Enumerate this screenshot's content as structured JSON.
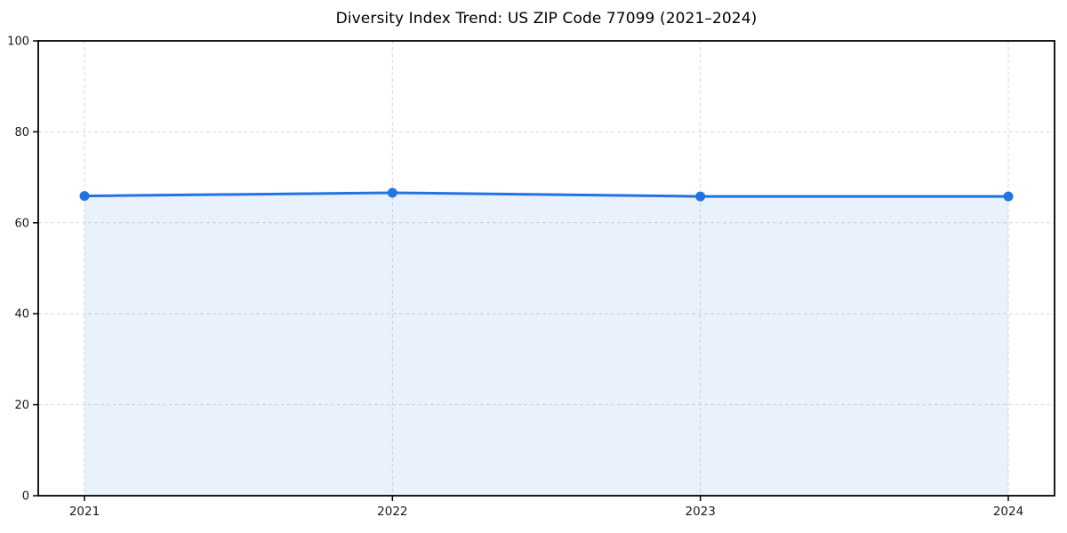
{
  "chart_data": {
    "type": "line",
    "title": "Diversity Index Trend: US ZIP Code 77099 (2021–2024)",
    "series_name": "Diversity Index",
    "categories": [
      "2021",
      "2022",
      "2023",
      "2024"
    ],
    "values": [
      65.9,
      66.6,
      65.8,
      65.8
    ],
    "xlabel": "",
    "ylabel": "",
    "ylim": [
      0,
      100
    ],
    "yticks": [
      0,
      20,
      40,
      60,
      80,
      100
    ],
    "grid": true,
    "grid_style": "dashed",
    "legend_position": "none",
    "marker": "circle",
    "colors": {
      "line": "#2373e2",
      "marker": "#2373e2",
      "fill": "#2373e2",
      "fill_opacity": 0.1,
      "grid": "#d0d0d0",
      "axis": "#000000",
      "tick_label": "#1a1a1a",
      "title": "#000000",
      "background": "#ffffff"
    }
  }
}
